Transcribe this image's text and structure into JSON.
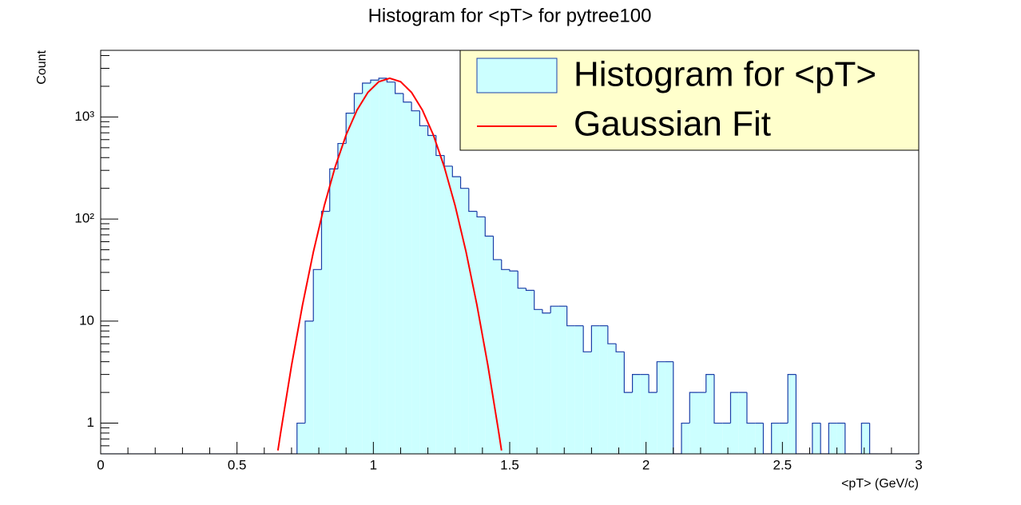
{
  "chart_data": {
    "type": "histogram",
    "title": "Histogram for <pT> for pytree100",
    "xlabel": "<pT> (GeV/c)",
    "ylabel": "Count",
    "name": "Histogram for <pT>",
    "color": "#ccffff",
    "edgecolor": "#1c3fa8",
    "bins": [
      0,
      0.03,
      0.06,
      0.09,
      0.12,
      0.15,
      0.18,
      0.21,
      0.24,
      0.27,
      0.3,
      0.33,
      0.36,
      0.39,
      0.42,
      0.45,
      0.48,
      0.51,
      0.54,
      0.57,
      0.6,
      0.63,
      0.66,
      0.69,
      0.72,
      0.75,
      0.78,
      0.81,
      0.84,
      0.87,
      0.9,
      0.93,
      0.96,
      0.99,
      1.02,
      1.05,
      1.08,
      1.11,
      1.14,
      1.17,
      1.2,
      1.23,
      1.26,
      1.29,
      1.32,
      1.35,
      1.38,
      1.41,
      1.44,
      1.47,
      1.5,
      1.53,
      1.56,
      1.59,
      1.62,
      1.65,
      1.68,
      1.71,
      1.74,
      1.77,
      1.8,
      1.83,
      1.86,
      1.89,
      1.92,
      1.95,
      1.98,
      2.01,
      2.04,
      2.07,
      2.1,
      2.13,
      2.16,
      2.19,
      2.22,
      2.25,
      2.28,
      2.31,
      2.34,
      2.37,
      2.4,
      2.43,
      2.46,
      2.49,
      2.52,
      2.55,
      2.58,
      2.61,
      2.64,
      2.67,
      2.7,
      2.73,
      2.76,
      2.79,
      2.82,
      2.85,
      2.88,
      2.91,
      2.94,
      2.97,
      3
    ],
    "values": [
      0,
      0,
      0,
      0,
      0,
      0,
      0,
      0,
      0,
      0,
      0,
      0,
      0,
      0,
      0,
      0,
      0,
      0,
      0,
      0,
      0,
      0,
      0,
      0,
      1,
      10,
      32,
      119,
      310,
      550,
      1090,
      1700,
      2150,
      2300,
      2400,
      2200,
      1700,
      1400,
      1150,
      820,
      660,
      420,
      330,
      260,
      200,
      119,
      105,
      68,
      40,
      32,
      31,
      21,
      20,
      13,
      12,
      14,
      14,
      9,
      9,
      5,
      9,
      9,
      6,
      5,
      2,
      3,
      3,
      2,
      4,
      4,
      0,
      1,
      2,
      2,
      3,
      1,
      1,
      2,
      2,
      1,
      1,
      0,
      1,
      1,
      3,
      0,
      0,
      1,
      0,
      1,
      1,
      0,
      0,
      1,
      0,
      0,
      0,
      0,
      0,
      0
    ],
    "fit": {
      "name": "Gaussian Fit",
      "color": "#ff0000",
      "x": [
        0.65,
        0.66,
        0.7,
        0.74,
        0.78,
        0.82,
        0.86,
        0.9,
        0.94,
        0.98,
        1.02,
        1.06,
        1.1,
        1.14,
        1.18,
        1.22,
        1.26,
        1.3,
        1.34,
        1.38,
        1.42,
        1.46,
        1.47
      ],
      "y": [
        0.54,
        0.805,
        3.68,
        14.3,
        47.6,
        135,
        325,
        667,
        1168,
        1743,
        2215,
        2400,
        2215,
        1743,
        1168,
        667,
        325,
        135,
        47.6,
        14.3,
        3.68,
        0.805,
        0.54
      ]
    },
    "xlim": [
      0,
      3
    ],
    "xticks": [
      0,
      0.5,
      1,
      1.5,
      2,
      2.5,
      3
    ],
    "ylim": [
      0.5,
      4500
    ],
    "log_y": true,
    "yticks": [
      1,
      10,
      {
        "value": 100,
        "label": "10²"
      },
      {
        "value": 1000,
        "label": "10³"
      }
    ],
    "legend": "top-right"
  }
}
